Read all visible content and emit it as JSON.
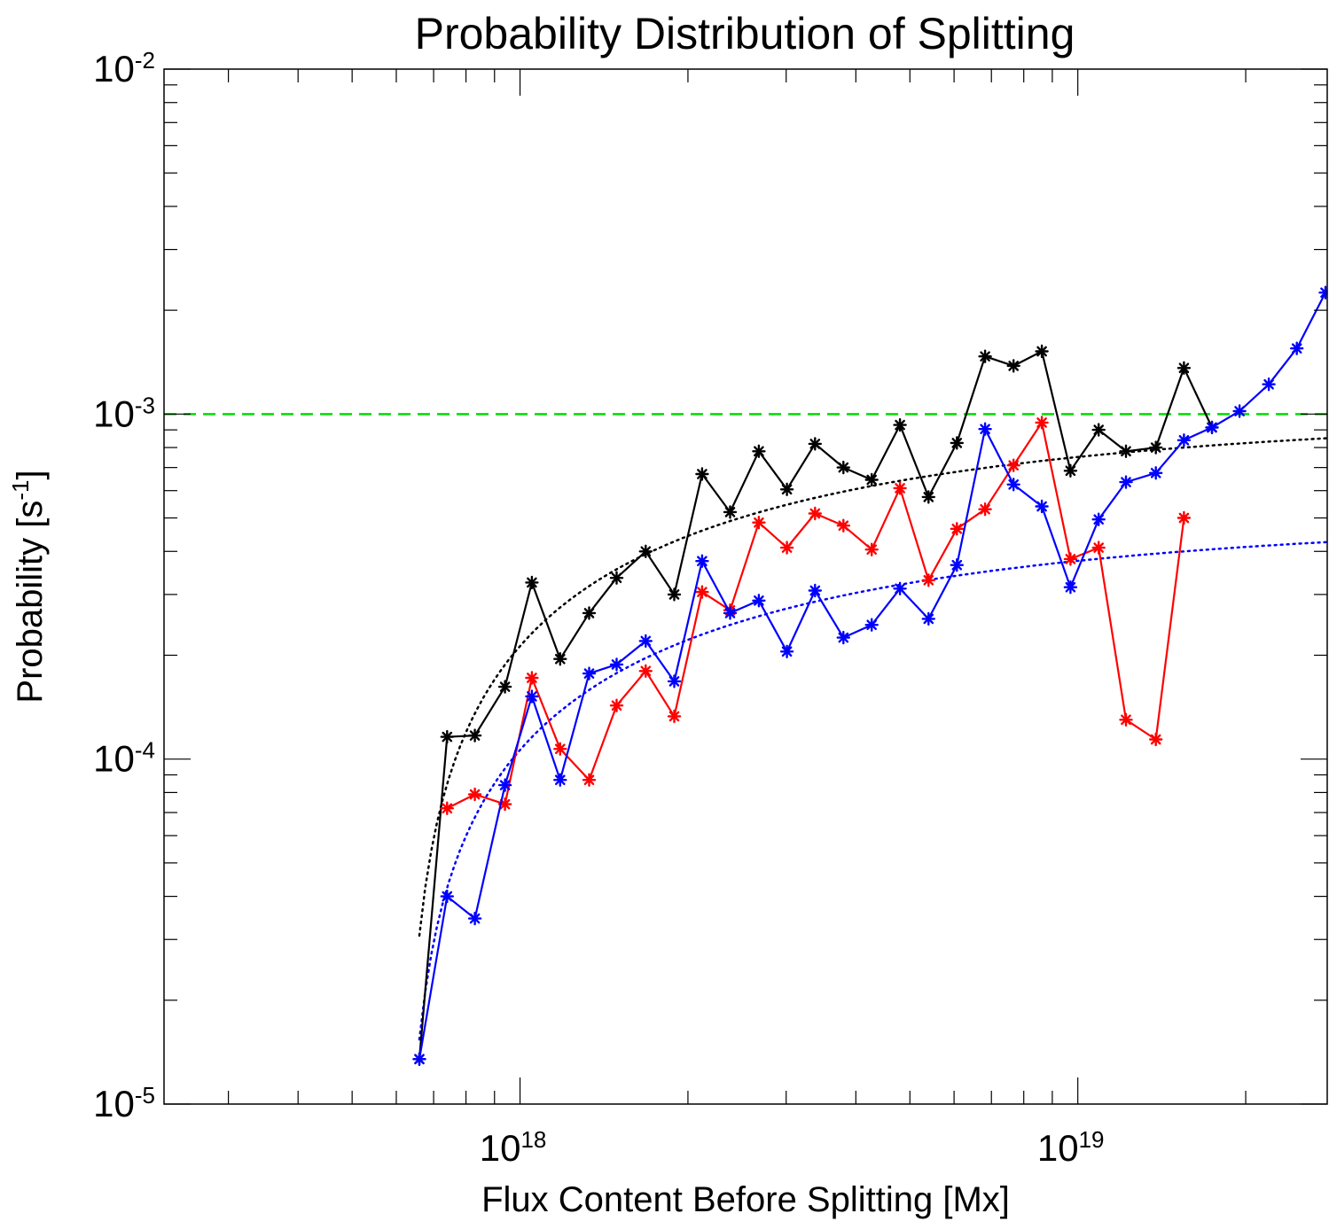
{
  "chart_data": {
    "type": "line",
    "title": "Probability Distribution of Splitting",
    "xlabel": "Flux Content Before Splitting [Mx]",
    "ylabel": {
      "base": "Probability [s",
      "superscript": "-1",
      "suffix": "]"
    },
    "xscale": "log",
    "yscale": "log",
    "xlim": [
      2.3e+17,
      2.8e+19
    ],
    "ylim": [
      1e-05,
      0.01
    ],
    "x_ticks": [
      {
        "value": 1e+18,
        "base": "10",
        "exponent": "18"
      },
      {
        "value": 1e+19,
        "base": "10",
        "exponent": "19"
      }
    ],
    "y_ticks": [
      {
        "value": 0.01,
        "base": "10",
        "exponent": "-2"
      },
      {
        "value": 0.001,
        "base": "10",
        "exponent": "-3"
      },
      {
        "value": 0.0001,
        "base": "10",
        "exponent": "-4"
      },
      {
        "value": 1e-05,
        "base": "10",
        "exponent": "-5"
      }
    ],
    "series": [
      {
        "name": "black",
        "color": "#000000",
        "x": [
          6.6e+17,
          7.4e+17,
          8.3e+17,
          9.4e+17,
          1.05e+18,
          1.18e+18,
          1.33e+18,
          1.49e+18,
          1.68e+18,
          1.89e+18,
          2.12e+18,
          2.38e+18,
          2.68e+18,
          3.01e+18,
          3.38e+18,
          3.8e+18,
          4.27e+18,
          4.8e+18,
          5.4e+18,
          6.07e+18,
          6.82e+18,
          7.67e+18,
          8.62e+18,
          9.7e+18,
          1.09e+19,
          1.22e+19,
          1.38e+19,
          1.55e+19,
          1.74e+19
        ],
        "y": [
          1.35e-05,
          0.000116,
          0.000117,
          0.000162,
          0.000325,
          0.000195,
          0.000265,
          0.000335,
          0.0004,
          0.0003,
          0.00067,
          0.00052,
          0.00078,
          0.000605,
          0.00082,
          0.0007,
          0.000645,
          0.00093,
          0.000575,
          0.000825,
          0.00147,
          0.00138,
          0.00152,
          0.000685,
          0.0009,
          0.00078,
          0.0008,
          0.00136,
          0.000915
        ]
      },
      {
        "name": "red",
        "color": "#ff0000",
        "x": [
          7.4e+17,
          8.3e+17,
          9.4e+17,
          1.05e+18,
          1.18e+18,
          1.33e+18,
          1.49e+18,
          1.68e+18,
          1.89e+18,
          2.12e+18,
          2.38e+18,
          2.68e+18,
          3.01e+18,
          3.38e+18,
          3.8e+18,
          4.27e+18,
          4.8e+18,
          5.4e+18,
          6.07e+18,
          6.82e+18,
          7.67e+18,
          8.62e+18,
          9.7e+18,
          1.09e+19,
          1.22e+19,
          1.38e+19,
          1.55e+19
        ],
        "y": [
          7.2e-05,
          7.9e-05,
          7.4e-05,
          0.000172,
          0.000107,
          8.7e-05,
          0.000143,
          0.00018,
          0.000133,
          0.000305,
          0.00027,
          0.000485,
          0.00041,
          0.000515,
          0.000475,
          0.000405,
          0.00061,
          0.00033,
          0.000465,
          0.00053,
          0.00071,
          0.000945,
          0.00038,
          0.00041,
          0.00013,
          0.000114,
          0.0005
        ]
      },
      {
        "name": "blue",
        "color": "#0000ff",
        "x": [
          6.6e+17,
          7.4e+17,
          8.3e+17,
          9.4e+17,
          1.05e+18,
          1.18e+18,
          1.33e+18,
          1.49e+18,
          1.68e+18,
          1.89e+18,
          2.12e+18,
          2.38e+18,
          2.68e+18,
          3.01e+18,
          3.38e+18,
          3.8e+18,
          4.27e+18,
          4.8e+18,
          5.4e+18,
          6.07e+18,
          6.82e+18,
          7.67e+18,
          8.62e+18,
          9.7e+18,
          1.09e+19,
          1.22e+19,
          1.38e+19,
          1.55e+19,
          1.74e+19,
          1.95e+19,
          2.2e+19,
          2.47e+19,
          2.78e+19
        ],
        "y": [
          1.35e-05,
          4e-05,
          3.45e-05,
          8.4e-05,
          0.000152,
          8.7e-05,
          0.000177,
          0.000188,
          0.00022,
          0.000168,
          0.000375,
          0.000265,
          0.000288,
          0.000205,
          0.000308,
          0.000225,
          0.000245,
          0.000312,
          0.000255,
          0.000365,
          0.000905,
          0.000625,
          0.00054,
          0.000315,
          0.000495,
          0.000635,
          0.000675,
          0.00084,
          0.000915,
          0.00102,
          0.00122,
          0.00155,
          0.00225
        ]
      }
    ],
    "line_extension": {
      "series": "blue",
      "x_end": 3.1e+19,
      "y_end": 0.00275
    },
    "fits": [
      {
        "name": "black-fit",
        "color": "#000000",
        "style": "dotted",
        "asymptote": 0.001,
        "x0": 6.2e+17,
        "x_start": 6.6e+17,
        "x_end": 3.1e+19
      },
      {
        "name": "blue-fit",
        "color": "#0000ff",
        "style": "dotted",
        "asymptote": 0.0005,
        "x0": 6.2e+17,
        "x_start": 6.6e+17,
        "x_end": 3.1e+19
      }
    ],
    "reference_lines": [
      {
        "name": "threshold",
        "color": "#00dd00",
        "style": "dashed",
        "y": 0.001
      }
    ],
    "marker": "asterisk",
    "grid": false,
    "legend": "none"
  }
}
